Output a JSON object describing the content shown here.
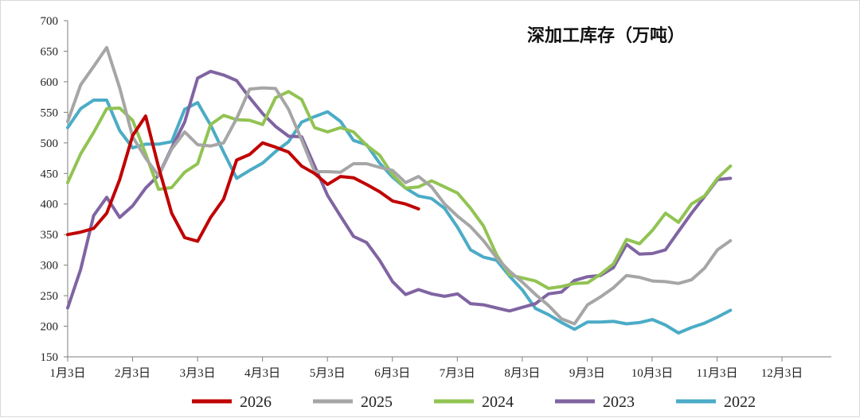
{
  "chart_data": {
    "type": "line",
    "title": "深加工库存（万吨）",
    "xlabel": "",
    "ylabel": "",
    "ylim": [
      150,
      700
    ],
    "y_ticks": [
      150,
      200,
      250,
      300,
      350,
      400,
      450,
      500,
      550,
      600,
      650,
      700
    ],
    "x_ticks": [
      "1月3日",
      "2月3日",
      "3月3日",
      "4月3日",
      "5月3日",
      "6月3日",
      "7月3日",
      "8月3日",
      "9月3日",
      "10月3日",
      "11月3日",
      "12月3日"
    ],
    "x_range_weeks": [
      0,
      49
    ],
    "grid": false,
    "legend_position": "bottom",
    "series": [
      {
        "name": "2026",
        "color": "#c00000",
        "points": [
          [
            0,
            350
          ],
          [
            1,
            354
          ],
          [
            2,
            360
          ],
          [
            3,
            385
          ],
          [
            4,
            440
          ],
          [
            5,
            512
          ],
          [
            6,
            544
          ],
          [
            7,
            460
          ],
          [
            8,
            385
          ],
          [
            9,
            345
          ],
          [
            10,
            339
          ],
          [
            11,
            378
          ],
          [
            12,
            408
          ],
          [
            13,
            472
          ],
          [
            14,
            481
          ],
          [
            15,
            500
          ],
          [
            16,
            493
          ],
          [
            17,
            485
          ],
          [
            18,
            462
          ],
          [
            19,
            450
          ],
          [
            20,
            432
          ],
          [
            21,
            445
          ],
          [
            22,
            443
          ],
          [
            23,
            432
          ],
          [
            24,
            420
          ],
          [
            25,
            405
          ],
          [
            26,
            400
          ],
          [
            27,
            392
          ]
        ]
      },
      {
        "name": "2025",
        "color": "#a6a6a6",
        "points": [
          [
            0,
            535
          ],
          [
            1,
            595
          ],
          [
            2,
            625
          ],
          [
            3,
            656
          ],
          [
            4,
            590
          ],
          [
            5,
            510
          ],
          [
            6,
            475
          ],
          [
            7,
            446
          ],
          [
            8,
            490
          ],
          [
            9,
            518
          ],
          [
            10,
            497
          ],
          [
            11,
            495
          ],
          [
            12,
            500
          ],
          [
            13,
            540
          ],
          [
            14,
            588
          ],
          [
            15,
            590
          ],
          [
            16,
            589
          ],
          [
            17,
            555
          ],
          [
            18,
            505
          ],
          [
            19,
            453
          ],
          [
            20,
            453
          ],
          [
            21,
            452
          ],
          [
            22,
            466
          ],
          [
            23,
            466
          ],
          [
            24,
            460
          ],
          [
            25,
            455
          ],
          [
            26,
            435
          ],
          [
            27,
            445
          ],
          [
            28,
            428
          ],
          [
            29,
            400
          ],
          [
            30,
            380
          ],
          [
            31,
            363
          ],
          [
            32,
            340
          ],
          [
            33,
            312
          ],
          [
            34,
            290
          ],
          [
            35,
            272
          ],
          [
            36,
            252
          ],
          [
            37,
            234
          ],
          [
            38,
            212
          ],
          [
            39,
            204
          ],
          [
            40,
            235
          ],
          [
            41,
            248
          ],
          [
            42,
            263
          ],
          [
            43,
            283
          ],
          [
            44,
            280
          ],
          [
            45,
            274
          ],
          [
            46,
            273
          ],
          [
            47,
            270
          ],
          [
            48,
            276
          ],
          [
            49,
            295
          ],
          [
            50,
            325
          ],
          [
            51,
            340
          ]
        ]
      },
      {
        "name": "2024",
        "color": "#92c353",
        "points": [
          [
            0,
            435
          ],
          [
            1,
            482
          ],
          [
            2,
            517
          ],
          [
            3,
            556
          ],
          [
            4,
            557
          ],
          [
            5,
            537
          ],
          [
            6,
            482
          ],
          [
            7,
            424
          ],
          [
            8,
            427
          ],
          [
            9,
            452
          ],
          [
            10,
            466
          ],
          [
            11,
            530
          ],
          [
            12,
            545
          ],
          [
            13,
            538
          ],
          [
            14,
            537
          ],
          [
            15,
            530
          ],
          [
            16,
            574
          ],
          [
            17,
            584
          ],
          [
            18,
            571
          ],
          [
            19,
            525
          ],
          [
            20,
            518
          ],
          [
            21,
            525
          ],
          [
            22,
            518
          ],
          [
            23,
            496
          ],
          [
            24,
            480
          ],
          [
            25,
            448
          ],
          [
            26,
            426
          ],
          [
            27,
            428
          ],
          [
            28,
            438
          ],
          [
            29,
            428
          ],
          [
            30,
            418
          ],
          [
            31,
            393
          ],
          [
            32,
            364
          ],
          [
            33,
            317
          ],
          [
            34,
            284
          ],
          [
            35,
            279
          ],
          [
            36,
            274
          ],
          [
            37,
            262
          ],
          [
            38,
            265
          ],
          [
            39,
            270
          ],
          [
            40,
            271
          ],
          [
            41,
            285
          ],
          [
            42,
            302
          ],
          [
            43,
            342
          ],
          [
            44,
            335
          ],
          [
            45,
            357
          ],
          [
            46,
            385
          ],
          [
            47,
            370
          ],
          [
            48,
            400
          ],
          [
            49,
            413
          ],
          [
            50,
            442
          ],
          [
            51,
            462
          ]
        ]
      },
      {
        "name": "2023",
        "color": "#8064a2",
        "points": [
          [
            0,
            230
          ],
          [
            1,
            293
          ],
          [
            2,
            381
          ],
          [
            3,
            411
          ],
          [
            4,
            378
          ],
          [
            5,
            397
          ],
          [
            6,
            426
          ],
          [
            7,
            447
          ],
          [
            8,
            492
          ],
          [
            9,
            534
          ],
          [
            10,
            606
          ],
          [
            11,
            617
          ],
          [
            12,
            611
          ],
          [
            13,
            602
          ],
          [
            14,
            574
          ],
          [
            15,
            548
          ],
          [
            16,
            527
          ],
          [
            17,
            511
          ],
          [
            18,
            510
          ],
          [
            19,
            462
          ],
          [
            20,
            414
          ],
          [
            21,
            380
          ],
          [
            22,
            347
          ],
          [
            23,
            337
          ],
          [
            24,
            308
          ],
          [
            25,
            273
          ],
          [
            26,
            252
          ],
          [
            27,
            260
          ],
          [
            28,
            253
          ],
          [
            29,
            249
          ],
          [
            30,
            253
          ],
          [
            31,
            237
          ],
          [
            32,
            235
          ],
          [
            33,
            230
          ],
          [
            34,
            225
          ],
          [
            35,
            231
          ],
          [
            36,
            237
          ],
          [
            37,
            253
          ],
          [
            38,
            256
          ],
          [
            39,
            275
          ],
          [
            40,
            281
          ],
          [
            41,
            283
          ],
          [
            42,
            296
          ],
          [
            43,
            334
          ],
          [
            44,
            318
          ],
          [
            45,
            319
          ],
          [
            46,
            325
          ],
          [
            47,
            355
          ],
          [
            48,
            385
          ],
          [
            49,
            412
          ],
          [
            50,
            440
          ],
          [
            51,
            442
          ]
        ]
      },
      {
        "name": "2022",
        "color": "#4bacc6",
        "points": [
          [
            0,
            525
          ],
          [
            1,
            556
          ],
          [
            2,
            570
          ],
          [
            3,
            570
          ],
          [
            4,
            520
          ],
          [
            5,
            492
          ],
          [
            6,
            498
          ],
          [
            7,
            498
          ],
          [
            8,
            502
          ],
          [
            9,
            555
          ],
          [
            10,
            566
          ],
          [
            11,
            529
          ],
          [
            12,
            485
          ],
          [
            13,
            442
          ],
          [
            14,
            455
          ],
          [
            15,
            467
          ],
          [
            16,
            486
          ],
          [
            17,
            502
          ],
          [
            18,
            534
          ],
          [
            19,
            543
          ],
          [
            20,
            551
          ],
          [
            21,
            535
          ],
          [
            22,
            504
          ],
          [
            23,
            497
          ],
          [
            24,
            467
          ],
          [
            25,
            444
          ],
          [
            26,
            426
          ],
          [
            27,
            413
          ],
          [
            28,
            409
          ],
          [
            29,
            393
          ],
          [
            30,
            362
          ],
          [
            31,
            325
          ],
          [
            32,
            313
          ],
          [
            33,
            308
          ],
          [
            34,
            282
          ],
          [
            35,
            259
          ],
          [
            36,
            229
          ],
          [
            37,
            219
          ],
          [
            38,
            206
          ],
          [
            39,
            195
          ],
          [
            40,
            207
          ],
          [
            41,
            207
          ],
          [
            42,
            208
          ],
          [
            43,
            204
          ],
          [
            44,
            206
          ],
          [
            45,
            211
          ],
          [
            46,
            202
          ],
          [
            47,
            189
          ],
          [
            48,
            198
          ],
          [
            49,
            205
          ],
          [
            50,
            215
          ],
          [
            51,
            226
          ]
        ]
      }
    ]
  }
}
